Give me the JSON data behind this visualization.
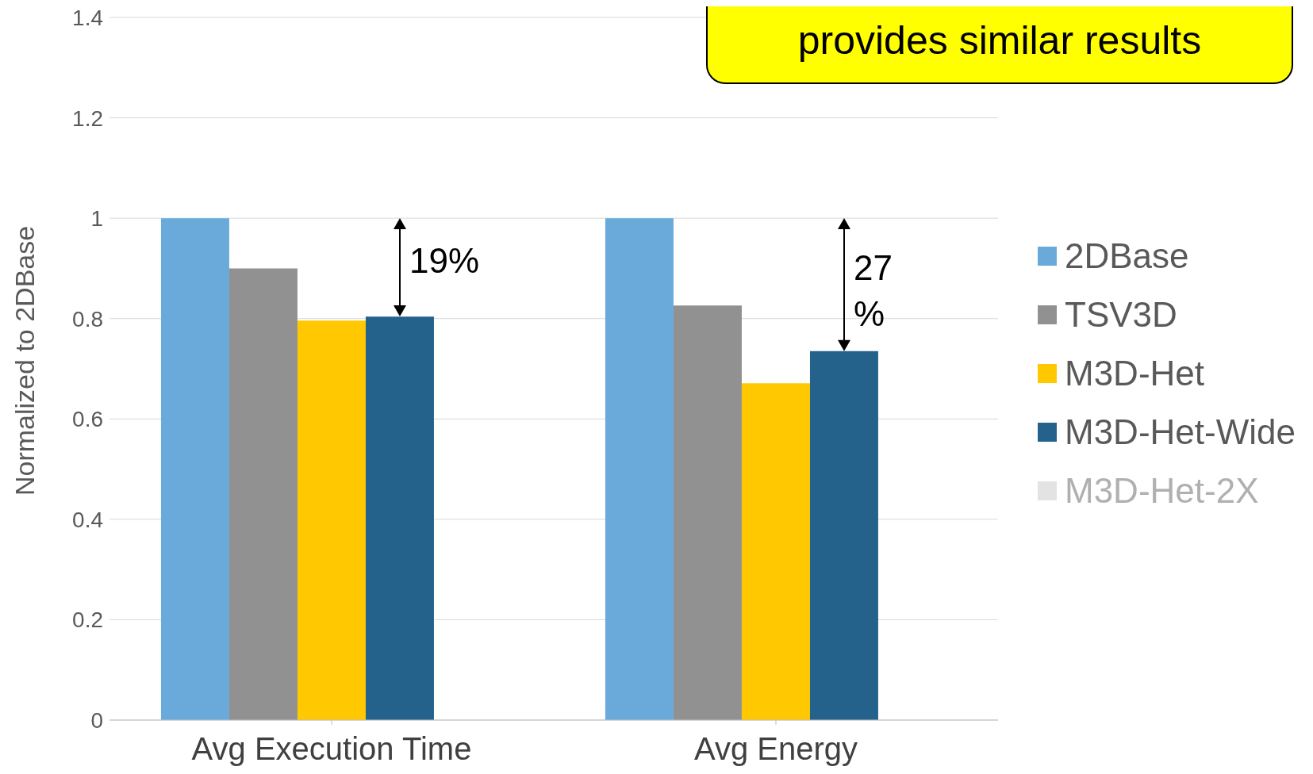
{
  "chart_data": {
    "type": "bar",
    "ylabel": "Normalized to 2DBase",
    "categories": [
      "Avg Execution Time",
      "Avg Energy"
    ],
    "series": [
      {
        "name": "2DBase",
        "color": "#6aaadb",
        "values": [
          1,
          1
        ]
      },
      {
        "name": "TSV3D",
        "color": "#919191",
        "values": [
          0.9,
          0.826
        ]
      },
      {
        "name": "M3D-Het",
        "color": "#ffc800",
        "values": [
          0.796,
          0.671
        ]
      },
      {
        "name": "M3D-Het-Wide",
        "color": "#25628b",
        "values": [
          0.804,
          0.735
        ]
      },
      {
        "name": "M3D-Het-2X",
        "color": "#e3e3e3",
        "values": [
          null,
          null
        ]
      }
    ],
    "ylim": [
      0,
      1.4
    ],
    "yticks": [
      0,
      0.2,
      0.4,
      0.6,
      0.8,
      1,
      1.2,
      1.4
    ],
    "grid": "y",
    "legend": "right",
    "annotations": [
      "19%",
      "27%",
      "provides similar results"
    ]
  }
}
